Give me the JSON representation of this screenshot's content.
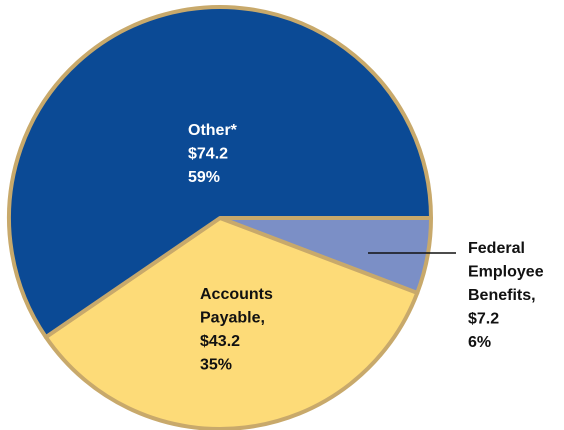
{
  "chart_data": {
    "type": "pie",
    "categories": [
      [
        "Federal",
        "Employee",
        "Benefits,"
      ],
      [
        "Accounts",
        "Payable,"
      ],
      [
        "Other*"
      ]
    ],
    "values": [
      7.2,
      43.2,
      74.2
    ],
    "value_labels": [
      "$7.2",
      "$43.2",
      "$74.2"
    ],
    "percents": [
      6,
      35,
      59
    ],
    "percent_labels": [
      "6%",
      "35%",
      "59%"
    ],
    "colors": [
      "#7b8fc6",
      "#fddb78",
      "#0b4a95"
    ]
  }
}
